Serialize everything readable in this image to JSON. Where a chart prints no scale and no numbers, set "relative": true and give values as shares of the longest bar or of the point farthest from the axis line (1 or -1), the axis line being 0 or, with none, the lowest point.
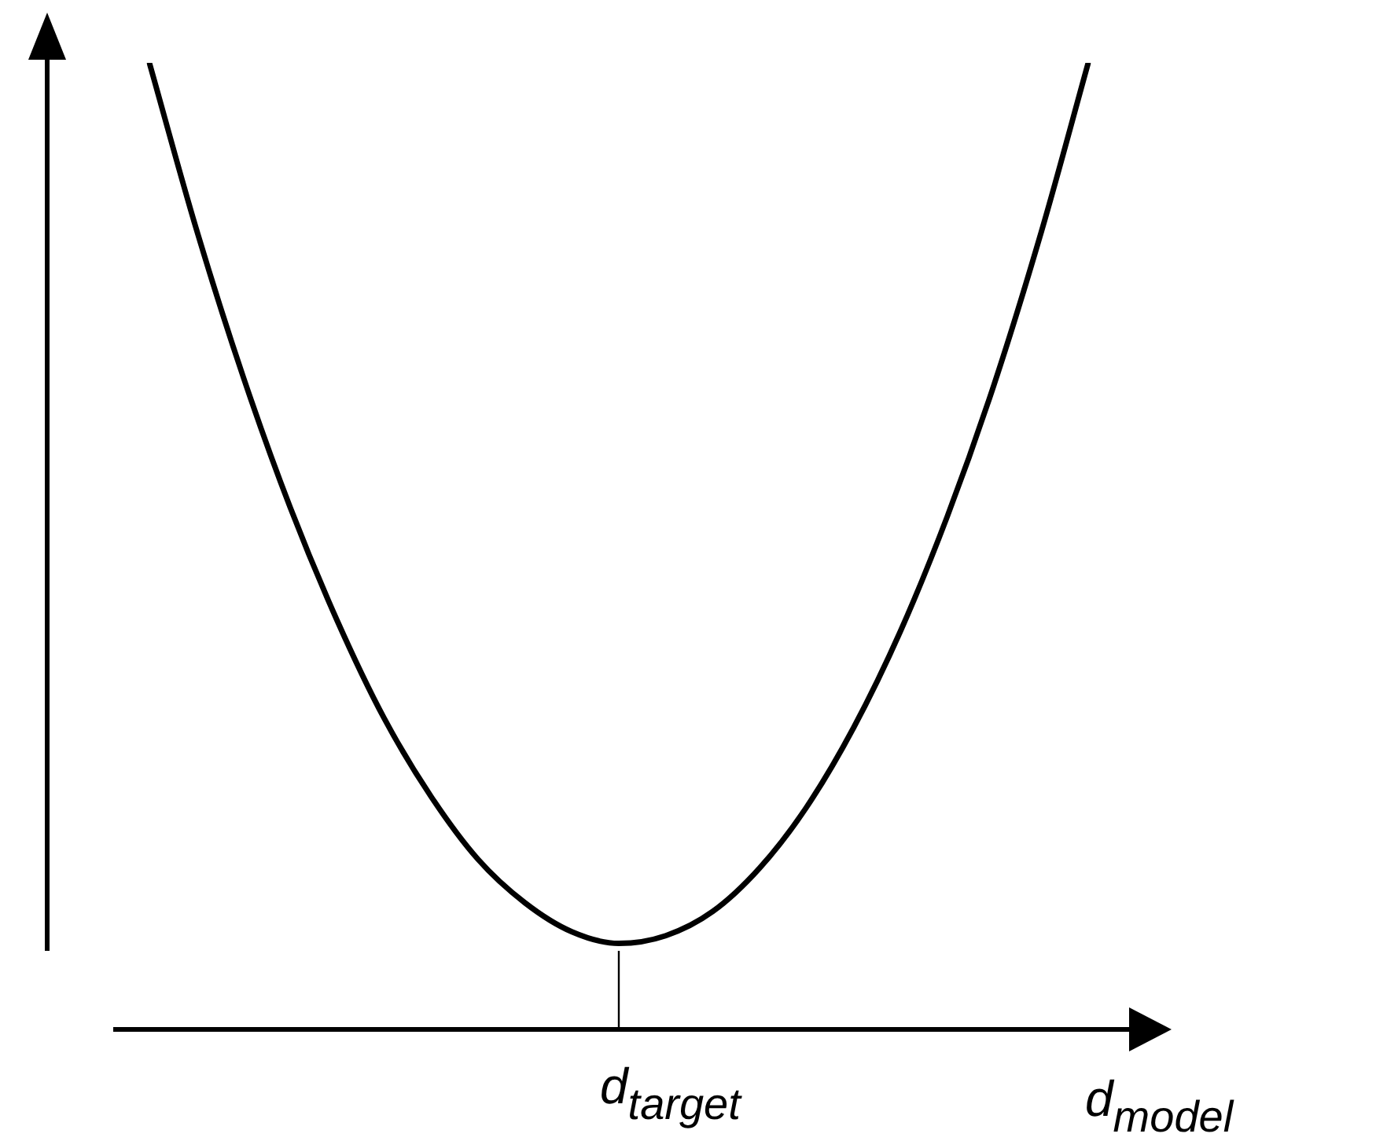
{
  "chart_data": {
    "type": "line",
    "relative": true,
    "xlabel": "d$_{model}$",
    "categories": [
      null,
      null,
      null,
      null,
      null,
      null,
      null,
      null,
      null,
      null,
      null,
      null,
      null,
      null,
      null,
      null,
      null,
      null,
      null,
      null,
      null
    ],
    "annotations": [
      "d$_{target}$"
    ],
    "series": [
      {
        "color": "#000000",
        "values": [
          1.0,
          0.828,
          0.675,
          0.54,
          0.423,
          0.322,
          0.241,
          0.176,
          0.131,
          0.101,
          0.089,
          0.097,
          0.122,
          0.167,
          0.23,
          0.312,
          0.412,
          0.531,
          0.668,
          0.825,
          1.0
        ]
      }
    ],
    "marker": "none",
    "line_style": "solid",
    "legend": false
  }
}
